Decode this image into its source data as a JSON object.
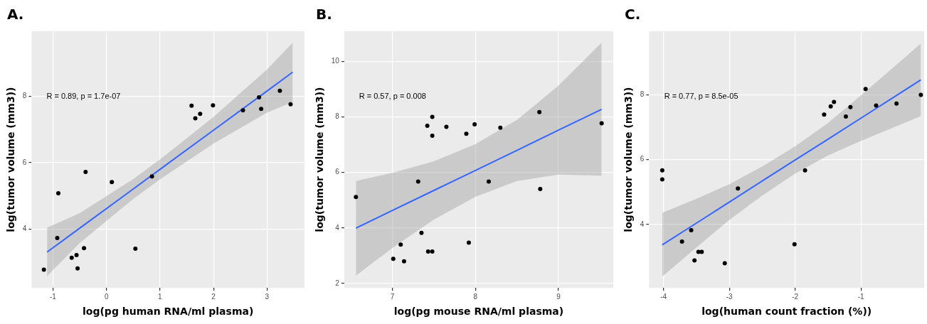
{
  "chart_data": [
    {
      "type": "scatter",
      "title": "A.",
      "xlabel": "log(pg human RNA/ml plasma)",
      "ylabel": "log(tumor volume (mm3))",
      "annotations": [
        "R = 0.89, p = 1.7e-07"
      ],
      "xlim": [
        -1.4,
        3.7
      ],
      "xticks": [
        -1,
        0,
        1,
        2,
        3
      ],
      "ylim": [
        2.23,
        9.96
      ],
      "yticks": [
        4,
        6,
        8
      ],
      "grid": true,
      "legend": false,
      "series": [
        {
          "type": "line",
          "color": "#3366ff",
          "marker": "none",
          "x": [
            -1.11,
            -0.5,
            0.5,
            1.0,
            2.0,
            3.0,
            3.48
          ],
          "values": [
            3.31,
            4.03,
            5.21,
            5.8,
            6.98,
            8.16,
            8.73
          ],
          "lower": [
            2.59,
            3.58,
            4.91,
            5.5,
            6.58,
            7.51,
            7.83
          ],
          "upper": [
            4.04,
            4.48,
            5.51,
            6.1,
            7.38,
            8.81,
            9.62
          ]
        },
        {
          "type": "scatter",
          "color": "#000000",
          "marker": "circle",
          "x": [
            -1.17,
            -0.92,
            -0.9,
            -0.65,
            -0.56,
            -0.54,
            -0.42,
            -0.39,
            0.1,
            0.54,
            0.85,
            1.59,
            1.66,
            1.75,
            1.99,
            2.55,
            2.85,
            2.89,
            3.24,
            3.44
          ],
          "values": [
            2.78,
            3.73,
            5.08,
            3.14,
            3.22,
            2.82,
            3.43,
            5.72,
            5.42,
            3.41,
            5.59,
            7.72,
            7.34,
            7.47,
            7.73,
            7.58,
            7.97,
            7.62,
            8.17,
            7.76
          ]
        }
      ]
    },
    {
      "type": "scatter",
      "title": "B.",
      "xlabel": "log(pg mouse RNA/ml plasma)",
      "ylabel": "log(tumor volume (mm3))",
      "annotations": [
        "R = 0.57, p = 0.008"
      ],
      "xlim": [
        6.42,
        9.66
      ],
      "xticks": [
        7,
        8,
        9
      ],
      "ylim": [
        1.84,
        11.08
      ],
      "yticks": [
        2,
        4,
        6,
        8,
        10
      ],
      "grid": true,
      "legend": false,
      "series": [
        {
          "type": "line",
          "color": "#3366ff",
          "marker": "none",
          "x": [
            6.56,
            7.0,
            7.5,
            8.0,
            8.5,
            9.0,
            9.52
          ],
          "values": [
            3.99,
            4.63,
            5.35,
            6.07,
            6.79,
            7.52,
            8.27
          ],
          "lower": [
            2.28,
            3.28,
            4.3,
            5.12,
            5.69,
            5.92,
            5.88
          ],
          "upper": [
            5.69,
            5.98,
            6.4,
            7.02,
            7.89,
            9.12,
            10.67
          ]
        },
        {
          "type": "scatter",
          "color": "#000000",
          "marker": "circle",
          "x": [
            6.56,
            7.01,
            7.1,
            7.14,
            7.31,
            7.35,
            7.42,
            7.43,
            7.48,
            7.48,
            7.48,
            7.65,
            7.89,
            7.92,
            7.99,
            8.16,
            8.3,
            8.77,
            8.78,
            9.52
          ],
          "values": [
            5.11,
            2.89,
            3.4,
            2.8,
            5.67,
            3.82,
            7.68,
            3.15,
            7.32,
            8.0,
            3.15,
            7.64,
            7.39,
            3.47,
            7.73,
            5.67,
            7.61,
            8.17,
            5.4,
            7.77
          ]
        }
      ]
    },
    {
      "type": "scatter",
      "title": "C.",
      "xlabel": "log(human count fraction (%))",
      "ylabel": "log(tumor volume (mm3))",
      "annotations": [
        "R = 0.77, p = 8.5e-05"
      ],
      "xlim": [
        -4.22,
        -0.04
      ],
      "xticks": [
        -4,
        -3,
        -2,
        -1
      ],
      "ylim": [
        2.04,
        9.96
      ],
      "yticks": [
        4,
        6,
        8
      ],
      "grid": true,
      "legend": false,
      "series": [
        {
          "type": "line",
          "color": "#3366ff",
          "marker": "none",
          "x": [
            -4.02,
            -3.5,
            -3.0,
            -2.5,
            -2.0,
            -1.5,
            -1.0,
            -0.09
          ],
          "values": [
            3.37,
            4.04,
            4.69,
            5.34,
            5.99,
            6.63,
            7.28,
            8.46
          ],
          "lower": [
            2.39,
            3.29,
            4.14,
            4.89,
            5.57,
            6.13,
            6.58,
            7.34
          ],
          "upper": [
            4.36,
            4.79,
            5.24,
            5.79,
            6.41,
            7.13,
            7.98,
            9.58
          ]
        },
        {
          "type": "scatter",
          "color": "#000000",
          "marker": "circle",
          "x": [
            -4.02,
            -4.02,
            -3.72,
            -3.58,
            -3.53,
            -3.47,
            -3.42,
            -3.07,
            -2.87,
            -2.01,
            -1.85,
            -1.56,
            -1.46,
            -1.41,
            -1.23,
            -1.16,
            -0.93,
            -0.77,
            -0.46,
            -0.09
          ],
          "values": [
            5.67,
            5.39,
            3.47,
            3.82,
            2.89,
            3.15,
            3.15,
            2.8,
            5.11,
            3.39,
            5.67,
            7.39,
            7.64,
            7.78,
            7.33,
            7.62,
            8.18,
            7.67,
            7.73,
            8.0
          ]
        }
      ]
    }
  ]
}
